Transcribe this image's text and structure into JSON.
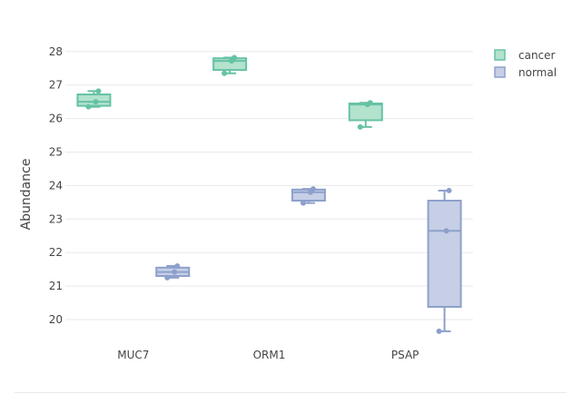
{
  "chart_data": {
    "type": "box",
    "ylabel": "Abundance",
    "xlabel": "",
    "ylim": [
      19.35,
      28.4
    ],
    "yticks": [
      20,
      21,
      22,
      23,
      24,
      25,
      26,
      27,
      28
    ],
    "categories": [
      "MUC7",
      "ORM1",
      "PSAP"
    ],
    "legend_position": "top-right",
    "grid": true,
    "series": [
      {
        "name": "cancer",
        "color": "#66c2a5",
        "fill": "#b3e2cd",
        "boxes": [
          {
            "category": "MUC7",
            "min": 26.35,
            "q1": 26.38,
            "median": 26.5,
            "q3": 26.72,
            "max": 26.82,
            "points": [
              26.35,
              26.5,
              26.82
            ]
          },
          {
            "category": "ORM1",
            "min": 27.35,
            "q1": 27.45,
            "median": 27.72,
            "q3": 27.8,
            "max": 27.82,
            "points": [
              27.35,
              27.72,
              27.82
            ]
          },
          {
            "category": "PSAP",
            "min": 25.75,
            "q1": 25.95,
            "median": 26.42,
            "q3": 26.45,
            "max": 26.47,
            "points": [
              25.75,
              26.42,
              26.47
            ]
          }
        ]
      },
      {
        "name": "normal",
        "color": "#8da0cb",
        "fill": "#c6cfe6",
        "boxes": [
          {
            "category": "MUC7",
            "min": 21.25,
            "q1": 21.3,
            "median": 21.42,
            "q3": 21.55,
            "max": 21.6,
            "points": [
              21.25,
              21.42,
              21.6
            ]
          },
          {
            "category": "ORM1",
            "min": 23.48,
            "q1": 23.55,
            "median": 23.8,
            "q3": 23.88,
            "max": 23.9,
            "points": [
              23.48,
              23.8,
              23.9
            ]
          },
          {
            "category": "PSAP",
            "min": 19.65,
            "q1": 20.38,
            "median": 22.65,
            "q3": 23.55,
            "max": 23.85,
            "points": [
              19.65,
              22.65,
              23.85
            ]
          }
        ]
      }
    ]
  }
}
